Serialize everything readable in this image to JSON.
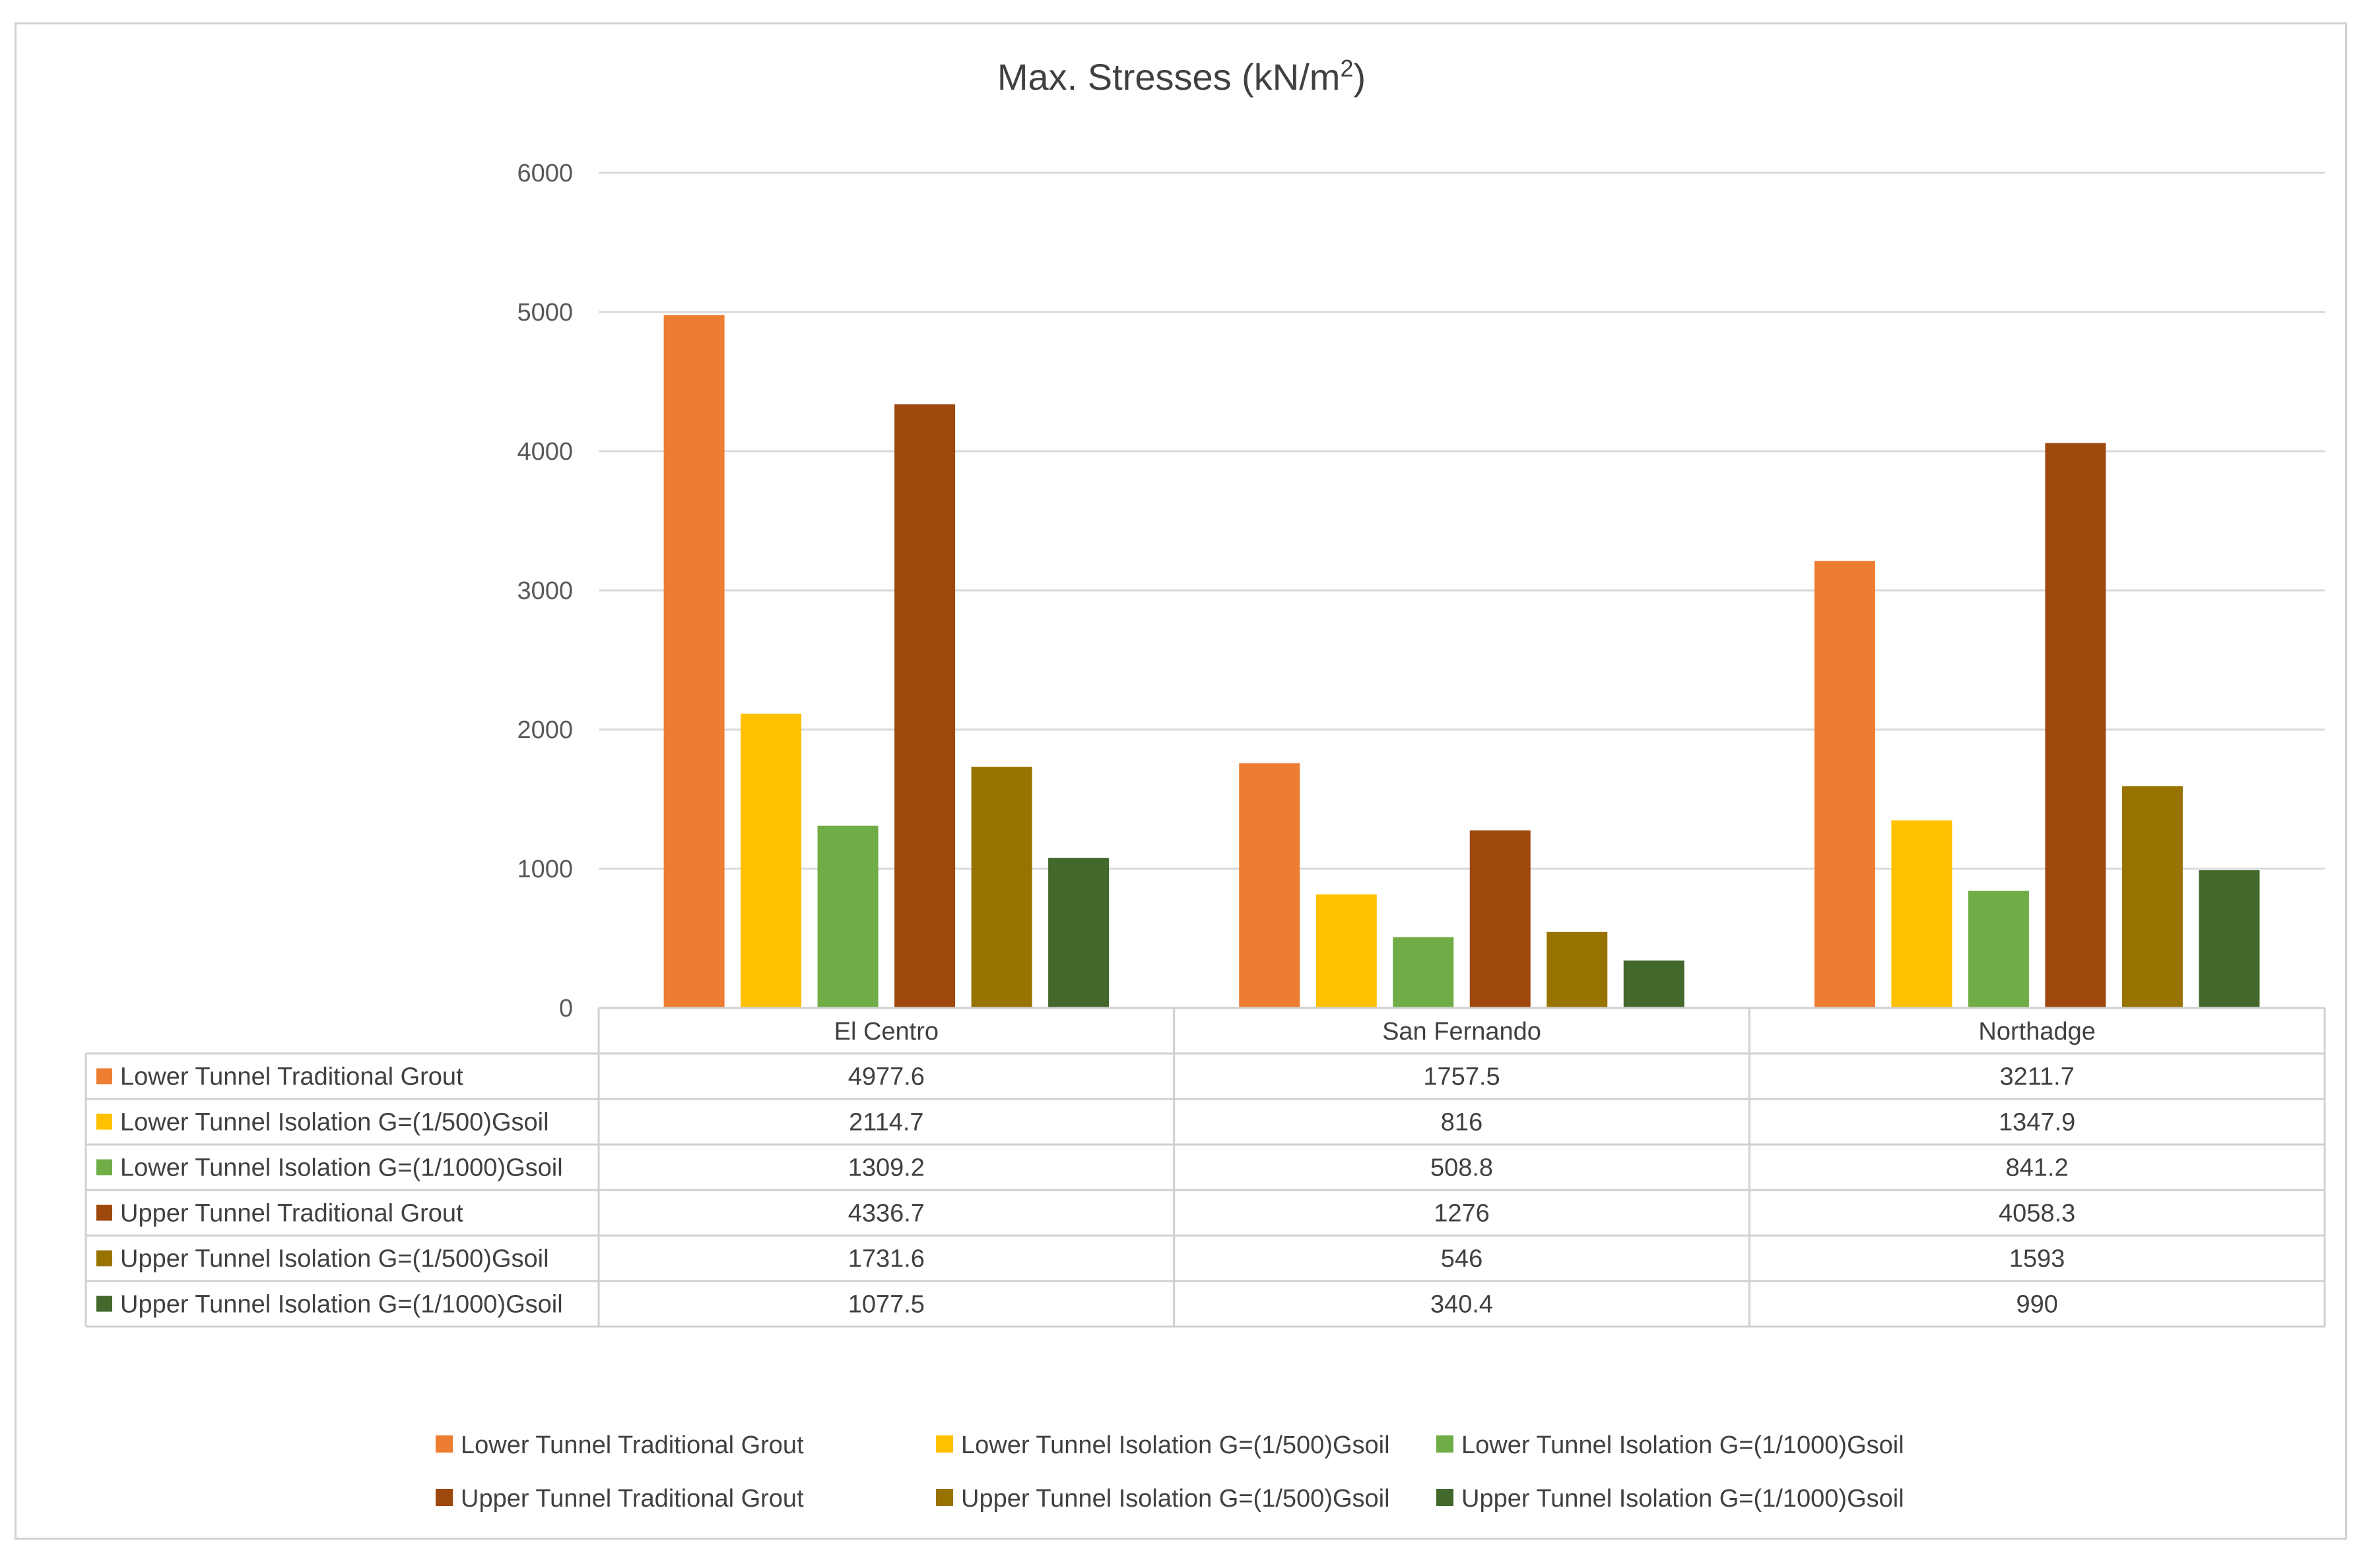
{
  "chart_data": {
    "type": "bar",
    "title": "Max. Stresses (kN/m",
    "title_superscript": "2",
    "title_close": ")",
    "categories": [
      "El Centro",
      "San Fernando",
      "Northadge"
    ],
    "ylim": [
      0,
      6000
    ],
    "yticks": [
      0,
      1000,
      2000,
      3000,
      4000,
      5000,
      6000
    ],
    "grid": true,
    "legend_position": "bottom",
    "data_table": true,
    "series": [
      {
        "name": "Lower Tunnel Traditional Grout",
        "color": "#ED7D31",
        "values": [
          4977.6,
          1757.5,
          3211.7
        ],
        "display": [
          "4977.6",
          "1757.5",
          "3211.7"
        ]
      },
      {
        "name": "Lower Tunnel Isolation  G=(1/500)Gsoil",
        "color": "#FFC000",
        "values": [
          2114.7,
          816,
          1347.9
        ],
        "display": [
          "2114.7",
          "816",
          "1347.9"
        ]
      },
      {
        "name": "Lower Tunnel Isolation  G=(1/1000)Gsoil",
        "color": "#70AD47",
        "values": [
          1309.2,
          508.8,
          841.2
        ],
        "display": [
          "1309.2",
          "508.8",
          "841.2"
        ]
      },
      {
        "name": "Upper Tunnel Traditional Grout",
        "color": "#9E480E",
        "values": [
          4336.7,
          1276,
          4058.3
        ],
        "display": [
          "4336.7",
          "1276",
          "4058.3"
        ]
      },
      {
        "name": "Upper Tunnel Isolation  G=(1/500)Gsoil",
        "color": "#997300",
        "values": [
          1731.6,
          546,
          1593
        ],
        "display": [
          "1731.6",
          "546",
          "1593"
        ]
      },
      {
        "name": "Upper Tunnel Isolation  G=(1/1000)Gsoil",
        "color": "#43682B",
        "values": [
          1077.5,
          340.4,
          990
        ],
        "display": [
          "1077.5",
          "340.4",
          "990"
        ]
      }
    ]
  }
}
